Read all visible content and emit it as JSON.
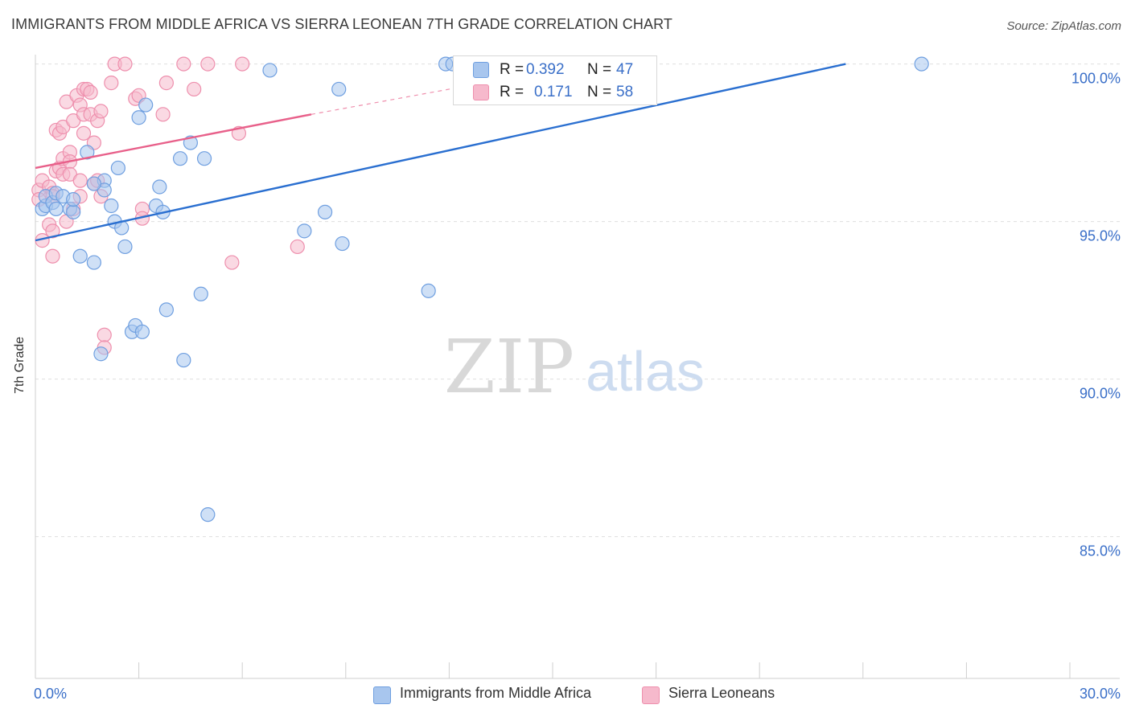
{
  "title": "IMMIGRANTS FROM MIDDLE AFRICA VS SIERRA LEONEAN 7TH GRADE CORRELATION CHART",
  "source": "Source: ZipAtlas.com",
  "watermark": {
    "zip": "ZIP",
    "atlas": "atlas"
  },
  "colors": {
    "blue_fill": "#a8c6ee",
    "blue_stroke": "#6f9fe0",
    "blue_line": "#2a6fd0",
    "pink_fill": "#f6b9cc",
    "pink_stroke": "#ee8fad",
    "pink_line": "#e8608a",
    "tick_text": "#3a6fc8"
  },
  "stats": [
    {
      "r_label": "R =",
      "r_value": "0.392",
      "n_label": "N =",
      "n_value": "47"
    },
    {
      "r_label": "R =",
      "r_value": "0.171",
      "n_label": "N =",
      "n_value": "58"
    }
  ],
  "legend": {
    "blue": "Immigrants from Middle Africa",
    "pink": "Sierra Leoneans"
  },
  "chart_data": {
    "type": "scatter",
    "xlabel": "",
    "ylabel": "7th Grade",
    "xlim": [
      0,
      30
    ],
    "ylim": [
      80.5,
      100.5
    ],
    "x_tick_labels": [
      "0.0%",
      "30.0%"
    ],
    "y_ticks": [
      85,
      90,
      95,
      100
    ],
    "y_tick_labels": [
      "85.0%",
      "90.0%",
      "95.0%",
      "100.0%"
    ],
    "series": [
      {
        "name": "Immigrants from Middle Africa",
        "color": "blue",
        "trend": {
          "x": [
            0,
            23.5
          ],
          "y": [
            94.4,
            100.0
          ],
          "dashed_to": null
        },
        "points": [
          [
            0.2,
            95.4
          ],
          [
            0.3,
            95.5
          ],
          [
            0.3,
            95.8
          ],
          [
            0.5,
            95.6
          ],
          [
            0.6,
            95.9
          ],
          [
            0.8,
            95.8
          ],
          [
            0.6,
            95.4
          ],
          [
            1.0,
            95.4
          ],
          [
            1.1,
            95.3
          ],
          [
            1.1,
            95.7
          ],
          [
            1.3,
            93.9
          ],
          [
            1.7,
            93.7
          ],
          [
            1.5,
            97.2
          ],
          [
            2.0,
            96.3
          ],
          [
            2.0,
            96.0
          ],
          [
            1.7,
            96.2
          ],
          [
            2.2,
            95.5
          ],
          [
            2.3,
            95.0
          ],
          [
            2.4,
            96.7
          ],
          [
            2.5,
            94.8
          ],
          [
            2.6,
            94.2
          ],
          [
            2.8,
            91.5
          ],
          [
            2.9,
            91.7
          ],
          [
            3.1,
            91.5
          ],
          [
            3.0,
            98.3
          ],
          [
            3.2,
            98.7
          ],
          [
            3.5,
            95.5
          ],
          [
            3.6,
            96.1
          ],
          [
            3.7,
            95.3
          ],
          [
            3.8,
            92.2
          ],
          [
            1.9,
            90.8
          ],
          [
            4.2,
            97.0
          ],
          [
            4.5,
            97.5
          ],
          [
            4.9,
            97.0
          ],
          [
            4.8,
            92.7
          ],
          [
            4.3,
            90.6
          ],
          [
            5.0,
            85.7
          ],
          [
            6.8,
            99.8
          ],
          [
            7.8,
            94.7
          ],
          [
            8.4,
            95.3
          ],
          [
            8.8,
            99.2
          ],
          [
            8.9,
            94.3
          ],
          [
            11.4,
            92.8
          ],
          [
            11.9,
            100.0
          ],
          [
            12.1,
            100.0
          ],
          [
            12.3,
            100.0
          ],
          [
            25.7,
            100.0
          ]
        ]
      },
      {
        "name": "Sierra Leoneans",
        "color": "pink",
        "trend": {
          "x": [
            0,
            8.0
          ],
          "y": [
            96.7,
            98.4
          ],
          "dashed_to": [
            12.5,
            99.3
          ]
        },
        "points": [
          [
            0.1,
            96.0
          ],
          [
            0.1,
            95.7
          ],
          [
            0.2,
            96.3
          ],
          [
            0.2,
            94.4
          ],
          [
            0.4,
            96.1
          ],
          [
            0.5,
            95.9
          ],
          [
            0.5,
            95.8
          ],
          [
            0.4,
            94.9
          ],
          [
            0.5,
            94.7
          ],
          [
            0.5,
            93.9
          ],
          [
            0.6,
            97.9
          ],
          [
            0.6,
            96.6
          ],
          [
            0.7,
            97.8
          ],
          [
            0.7,
            96.7
          ],
          [
            0.8,
            98.0
          ],
          [
            0.8,
            97.0
          ],
          [
            0.8,
            96.5
          ],
          [
            0.9,
            95.0
          ],
          [
            0.9,
            98.8
          ],
          [
            1.0,
            97.2
          ],
          [
            1.0,
            96.9
          ],
          [
            1.0,
            96.5
          ],
          [
            1.1,
            98.2
          ],
          [
            1.1,
            95.4
          ],
          [
            1.2,
            99.0
          ],
          [
            1.3,
            98.7
          ],
          [
            1.3,
            96.3
          ],
          [
            1.3,
            95.8
          ],
          [
            1.4,
            99.2
          ],
          [
            1.4,
            98.4
          ],
          [
            1.4,
            97.8
          ],
          [
            1.5,
            99.2
          ],
          [
            1.6,
            99.1
          ],
          [
            1.6,
            98.4
          ],
          [
            1.7,
            97.5
          ],
          [
            1.7,
            96.2
          ],
          [
            1.8,
            98.2
          ],
          [
            1.8,
            96.3
          ],
          [
            1.9,
            98.5
          ],
          [
            1.9,
            95.8
          ],
          [
            2.0,
            91.4
          ],
          [
            2.0,
            91.0
          ],
          [
            2.2,
            99.4
          ],
          [
            2.3,
            100.0
          ],
          [
            2.6,
            100.0
          ],
          [
            2.9,
            98.9
          ],
          [
            3.0,
            99.0
          ],
          [
            3.1,
            95.4
          ],
          [
            3.1,
            95.1
          ],
          [
            3.7,
            98.4
          ],
          [
            3.8,
            99.4
          ],
          [
            4.3,
            100.0
          ],
          [
            4.6,
            99.2
          ],
          [
            5.7,
            93.7
          ],
          [
            5.9,
            97.8
          ],
          [
            6.0,
            100.0
          ],
          [
            7.6,
            94.2
          ],
          [
            5.0,
            100.0
          ]
        ]
      }
    ]
  }
}
